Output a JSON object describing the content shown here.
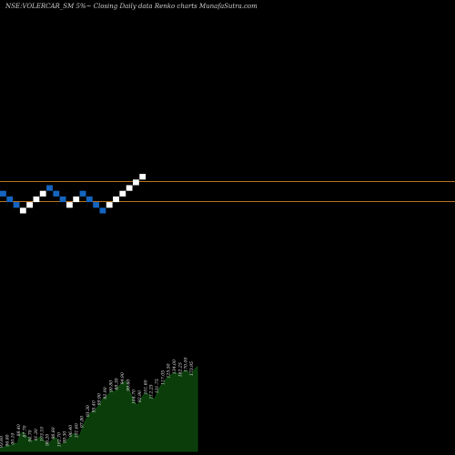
{
  "title": "NSE:VOLERCAR_SM 5%~  Closing Daily data  Renko  charts MunafaSutra.com",
  "colors": {
    "background": "#000000",
    "up_brick": "#ffffff",
    "down_brick": "#1565c0",
    "level_line": "#b8731f",
    "volume_fill": "#0b3d0b",
    "volume_stroke": "#0f4f12"
  },
  "chart_data": {
    "type": "renko",
    "brick_directions": [
      "down",
      "down",
      "down",
      "up",
      "up",
      "up",
      "up",
      "down",
      "down",
      "down",
      "up",
      "up",
      "down",
      "down",
      "down",
      "down",
      "up",
      "up",
      "up",
      "up",
      "up",
      "up"
    ],
    "brick_levels": [
      3,
      2,
      1,
      0,
      1,
      2,
      3,
      4,
      3,
      2,
      1,
      2,
      3,
      2,
      1,
      0,
      1,
      2,
      3,
      4,
      5,
      6
    ],
    "reference_lines": [
      "upper",
      "lower"
    ],
    "volume_labels": [
      "93.60",
      "96.80",
      "90.10",
      "88.40",
      "87.70",
      "94.70",
      "91.30",
      "103.10",
      "98.20",
      "96.80",
      "102.70",
      "99.30",
      "96.40",
      "101.60",
      "97.80",
      "93.30",
      "95.40",
      "99.90",
      "92.90",
      "90.80",
      "88.30",
      "94.90",
      "99.60",
      "104.70",
      "92.90",
      "101.60",
      "112.25",
      "131.75",
      "117.05",
      "125.50",
      "134.00",
      "162.25",
      "170.00",
      "173.95"
    ],
    "volume_values": [
      5,
      7,
      9,
      12,
      10,
      15,
      13,
      30,
      34,
      28,
      24,
      20,
      18,
      22,
      26,
      21,
      16,
      13,
      19,
      25,
      22,
      11,
      14,
      18,
      23,
      29,
      32,
      27,
      30,
      45,
      56,
      64,
      70,
      72,
      78,
      85,
      94,
      96,
      102,
      108,
      105,
      112,
      118,
      122,
      125,
      110,
      98,
      87,
      82,
      90,
      99,
      104,
      100,
      96,
      92,
      106,
      115,
      121,
      128,
      133,
      136,
      140,
      138,
      135,
      141,
      144,
      139,
      137,
      146,
      150
    ]
  }
}
